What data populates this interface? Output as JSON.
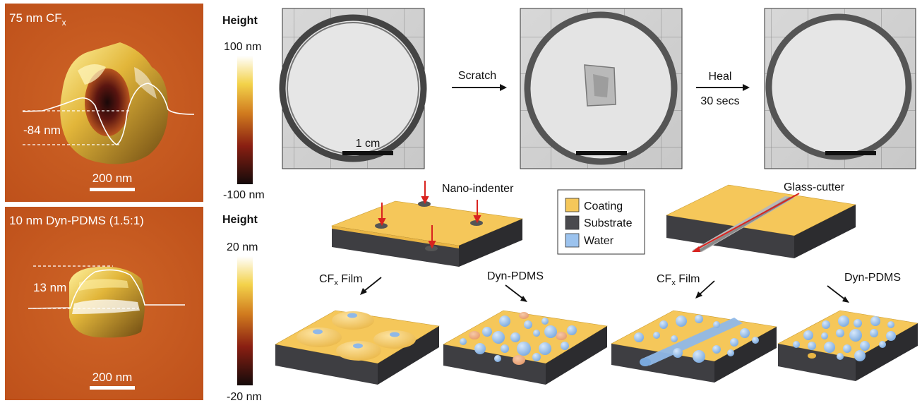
{
  "afm_top": {
    "title": "75 nm CF",
    "title_sub": "x",
    "depth_label": "-84 nm",
    "scale_label": "200 nm"
  },
  "afm_bottom": {
    "title": "10 nm Dyn-PDMS (1.5:1)",
    "height_label": "13 nm",
    "scale_label": "200 nm"
  },
  "colorbar_top": {
    "title": "Height",
    "max": "100 nm",
    "min": "-100 nm"
  },
  "colorbar_bottom": {
    "title": "Height",
    "max": "20 nm",
    "min": "-20 nm"
  },
  "photos": {
    "scale_label": "1 cm",
    "step1": "Scratch",
    "step2_line1": "Heal",
    "step2_line2": "30 secs"
  },
  "diagram": {
    "nano_indenter": "Nano-indenter",
    "glass_cutter": "Glass-cutter",
    "cfx_left": "CF",
    "cfx_left_sub": "x",
    "cfx_left_suffix": " Film",
    "dyn_left": "Dyn-PDMS",
    "cfx_right": "CF",
    "cfx_right_sub": "x",
    "cfx_right_suffix": " Film",
    "dyn_right": "Dyn-PDMS"
  },
  "legend": {
    "items": [
      {
        "label": "Coating",
        "color": "#f5c75a"
      },
      {
        "label": "Substrate",
        "color": "#4a4a4e"
      },
      {
        "label": "Water",
        "color": "#9cc3ee"
      }
    ]
  },
  "colors": {
    "coating": "#f5c75a",
    "substrate": "#3e3e42",
    "water": "#9cc3ee",
    "indenter": "#d9231f",
    "afm_bg": "#c8581f"
  }
}
